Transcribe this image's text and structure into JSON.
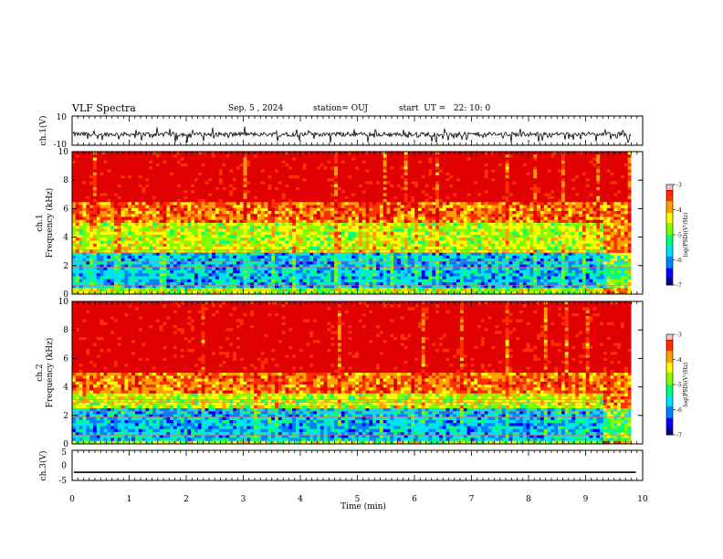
{
  "header": {
    "title": "VLF Spectra",
    "date": "Sep. 5 , 2024",
    "station": "station= OUJ",
    "start": "start  UT =   22: 10: 0"
  },
  "chart_data": [
    {
      "type": "line",
      "name": "ch1-waveform",
      "ylabel": "ch.1(V)",
      "ylim": [
        -10,
        10
      ],
      "yticks": [
        10,
        -10
      ],
      "xlim": [
        0,
        10
      ],
      "baseline": -2.5,
      "note_shape": "noisy waveform around baseline with frequent negative spikes"
    },
    {
      "type": "heatmap",
      "name": "ch1-spectrogram",
      "ylabel_line1": "ch.1",
      "ylabel_line2": "Frequency (kHz)",
      "ylim": [
        0,
        10
      ],
      "yticks": [
        0,
        2,
        4,
        6,
        8,
        10
      ],
      "xlim": [
        0,
        9.8
      ],
      "boundary_freq_khz": 5.0,
      "lowband_range_khz": [
        0.5,
        3.0
      ],
      "colorbar": {
        "label": "log(PSD)(V²/Hz)",
        "min": -7,
        "max": -3,
        "ticks": [
          -3,
          -4,
          -5,
          -6,
          -7
        ]
      }
    },
    {
      "type": "heatmap",
      "name": "ch2-spectrogram",
      "ylabel_line1": "ch.2",
      "ylabel_line2": "Frequency (kHz)",
      "ylim": [
        0,
        10
      ],
      "yticks": [
        0,
        2,
        4,
        6,
        8,
        10
      ],
      "xlim": [
        0,
        9.8
      ],
      "boundary_freq_khz": 3.5,
      "lowband_range_khz": [
        0.3,
        2.5
      ],
      "colorbar": {
        "label": "log(PSD)(V²/Hz)",
        "min": -7,
        "max": -3,
        "ticks": [
          -3,
          -4,
          -5,
          -6,
          -7
        ]
      }
    },
    {
      "type": "line",
      "name": "ch3-waveform",
      "ylabel": "ch.3(V)",
      "ylim": [
        -5,
        5
      ],
      "yticks": [
        5,
        0,
        -5
      ],
      "xlim": [
        0,
        10
      ],
      "values_constant": -2.3
    }
  ],
  "xaxis": {
    "label": "Time  (min)",
    "ticks": [
      "0",
      "1",
      "2",
      "3",
      "4",
      "5",
      "6",
      "7",
      "8",
      "9",
      "10"
    ]
  },
  "colormap": [
    "#000080",
    "#0000ff",
    "#0080ff",
    "#00e0ff",
    "#00ff80",
    "#80ff00",
    "#ffff00",
    "#ffa000",
    "#ff3000",
    "#e00000"
  ]
}
